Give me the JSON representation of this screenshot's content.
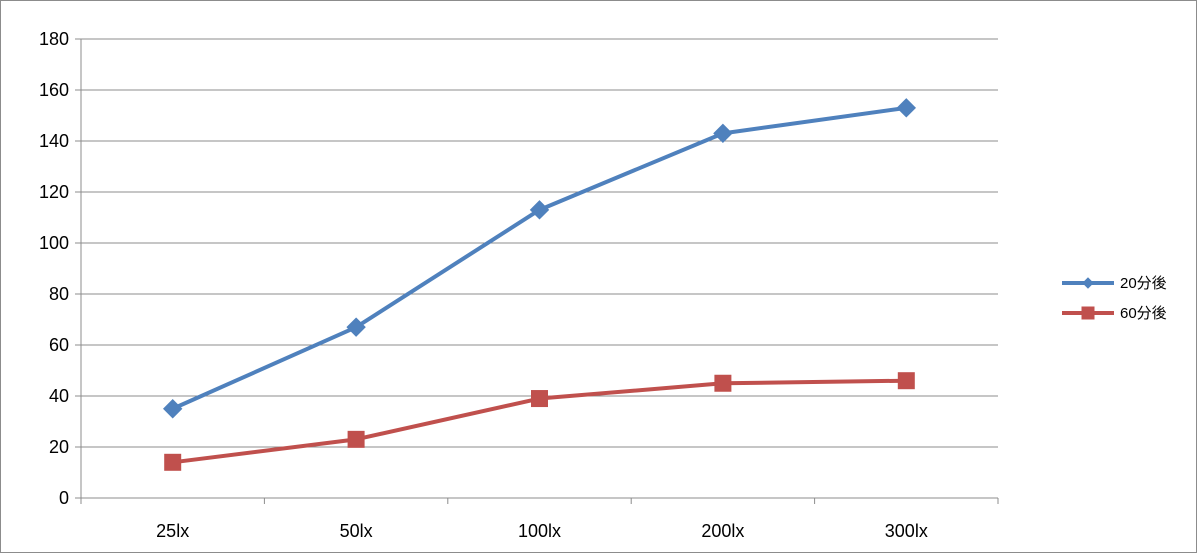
{
  "chart_data": {
    "type": "line",
    "categories": [
      "25lx",
      "50lx",
      "100lx",
      "200lx",
      "300lx"
    ],
    "series": [
      {
        "name": "20分後",
        "color": "#4f81bd",
        "marker": "diamond",
        "values": [
          35,
          67,
          113,
          143,
          153
        ]
      },
      {
        "name": "60分後",
        "color": "#c0504d",
        "marker": "square",
        "values": [
          14,
          23,
          39,
          45,
          46
        ]
      }
    ],
    "ylim": [
      0,
      180
    ],
    "yticks": [
      "0",
      "20",
      "40",
      "60",
      "80",
      "100",
      "120",
      "140",
      "160",
      "180"
    ],
    "grid": true,
    "legend_position": "right"
  }
}
